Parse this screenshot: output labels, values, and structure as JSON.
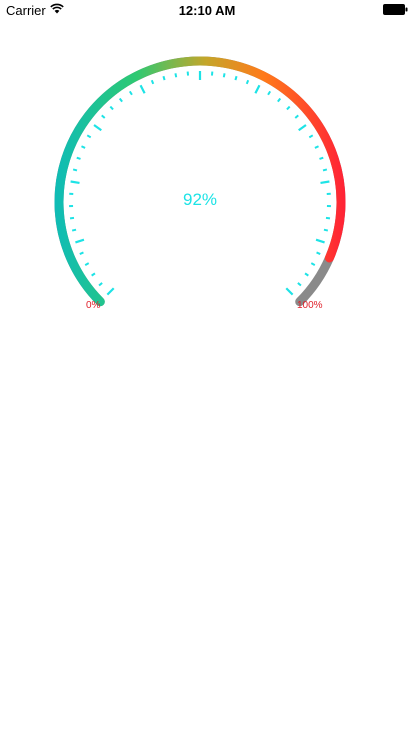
{
  "status_bar": {
    "carrier": "Carrier",
    "time": "12:10 AM",
    "wifi_icon": "wifi-icon",
    "battery_icon": "battery-icon"
  },
  "gauge": {
    "value": 0.92,
    "value_label": "92%",
    "min_label": "0%",
    "max_label": "100%",
    "colors": {
      "start": "#0fbcb6",
      "green": "#2ec972",
      "mid": "#c4a62a",
      "orange": "#ff7a1a",
      "end": "#ff2236",
      "track": "#8a8a8a",
      "ticks": "#1de3e6",
      "value_text": "#1de3e6",
      "end_labels": "#e0202a"
    }
  }
}
